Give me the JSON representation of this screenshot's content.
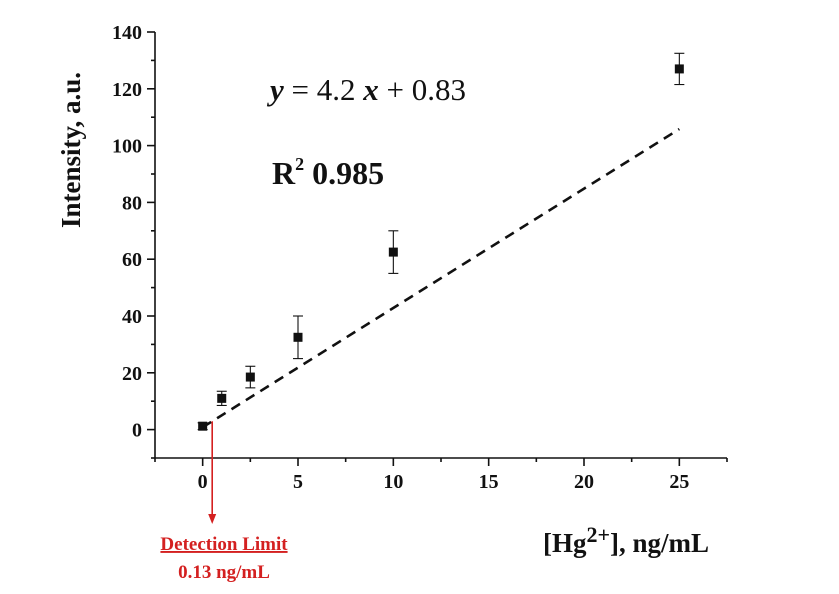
{
  "chart_data": {
    "type": "scatter",
    "x": [
      0,
      1,
      2.5,
      5,
      10,
      25
    ],
    "y": [
      1.2,
      11,
      18.5,
      32.5,
      62.5,
      127
    ],
    "y_err": [
      1.2,
      2.5,
      3.8,
      7.5,
      7.5,
      5.5
    ],
    "xlabel_main": "[Hg",
    "xlabel_sup": "2+",
    "xlabel_unit": "], ng/mL",
    "ylabel": "Intensity, a.u.",
    "xlim": [
      -2.5,
      27.5
    ],
    "ylim": [
      -10,
      140
    ],
    "xticks": [
      0,
      5,
      10,
      15,
      20,
      25
    ],
    "yticks": [
      0,
      20,
      40,
      60,
      80,
      100,
      120,
      140
    ],
    "fit": {
      "slope": 4.2,
      "intercept": 0.83,
      "x_range": [
        0,
        25
      ],
      "style": "dashed",
      "eq_y": "y",
      "eq_mid": " = 4.2 ",
      "eq_x": "x",
      "eq_end": " + 0.83",
      "r2_label": "R",
      "r2_sup": "2",
      "r2_value": " 0.985"
    },
    "detection_limit": {
      "label": "Detection Limit",
      "value_label": "0.13 ng/mL",
      "x": 0.5,
      "color": "#d42020"
    },
    "marker": "square",
    "marker_color": "#111111",
    "grid": false
  }
}
